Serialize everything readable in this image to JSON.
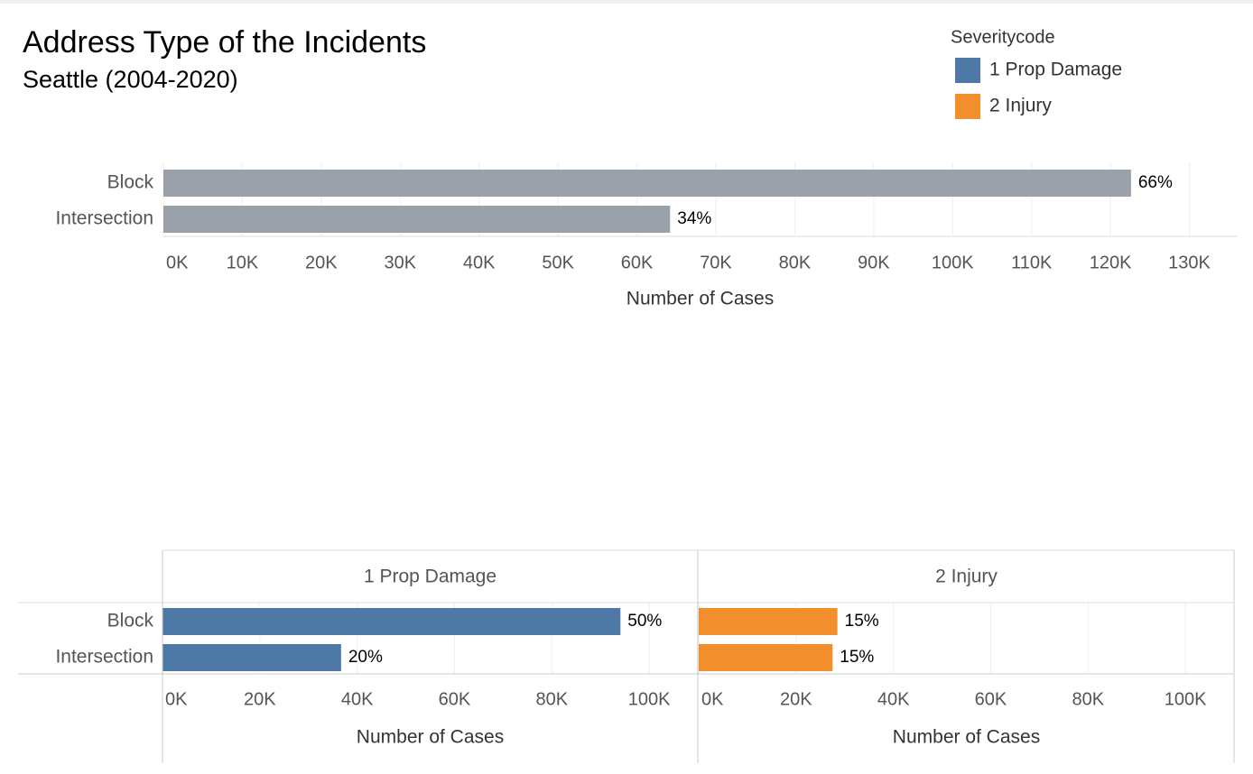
{
  "chart_data": [
    {
      "type": "bar",
      "orientation": "horizontal",
      "title": "Address Type of the Incidents",
      "subtitle": "Seattle (2004-2020)",
      "categories": [
        "Block",
        "Intersection"
      ],
      "values": [
        122600,
        64200
      ],
      "value_labels": [
        "66%",
        "34%"
      ],
      "color": "#9aa1a8",
      "xlim": [
        0,
        136000
      ],
      "xticks": [
        {
          "value": 0,
          "label": "0K"
        },
        {
          "value": 10000,
          "label": "10K"
        },
        {
          "value": 20000,
          "label": "20K"
        },
        {
          "value": 30000,
          "label": "30K"
        },
        {
          "value": 40000,
          "label": "40K"
        },
        {
          "value": 50000,
          "label": "50K"
        },
        {
          "value": 60000,
          "label": "60K"
        },
        {
          "value": 70000,
          "label": "70K"
        },
        {
          "value": 80000,
          "label": "80K"
        },
        {
          "value": 90000,
          "label": "90K"
        },
        {
          "value": 100000,
          "label": "100K"
        },
        {
          "value": 110000,
          "label": "110K"
        },
        {
          "value": 120000,
          "label": "120K"
        },
        {
          "value": 130000,
          "label": "130K"
        }
      ],
      "xlabel": "Number of Cases",
      "grid": true
    },
    {
      "type": "bar",
      "orientation": "horizontal",
      "facet": true,
      "legend_title": "Severitycode",
      "legend_position": "top-right",
      "categories": [
        "Block",
        "Intersection"
      ],
      "series": [
        {
          "name": "1 Prop Damage",
          "color": "#4e79a7",
          "values": [
            94100,
            36700
          ],
          "value_labels": [
            "50%",
            "20%"
          ]
        },
        {
          "name": "2 Injury",
          "color": "#f28e2b",
          "values": [
            28500,
            27500
          ],
          "value_labels": [
            "15%",
            "15%"
          ]
        }
      ],
      "xlim": [
        0,
        110000
      ],
      "xticks": [
        {
          "value": 0,
          "label": "0K"
        },
        {
          "value": 20000,
          "label": "20K"
        },
        {
          "value": 40000,
          "label": "40K"
        },
        {
          "value": 60000,
          "label": "60K"
        },
        {
          "value": 80000,
          "label": "80K"
        },
        {
          "value": 100000,
          "label": "100K"
        }
      ],
      "xlabel": "Number of Cases",
      "grid": true
    }
  ]
}
